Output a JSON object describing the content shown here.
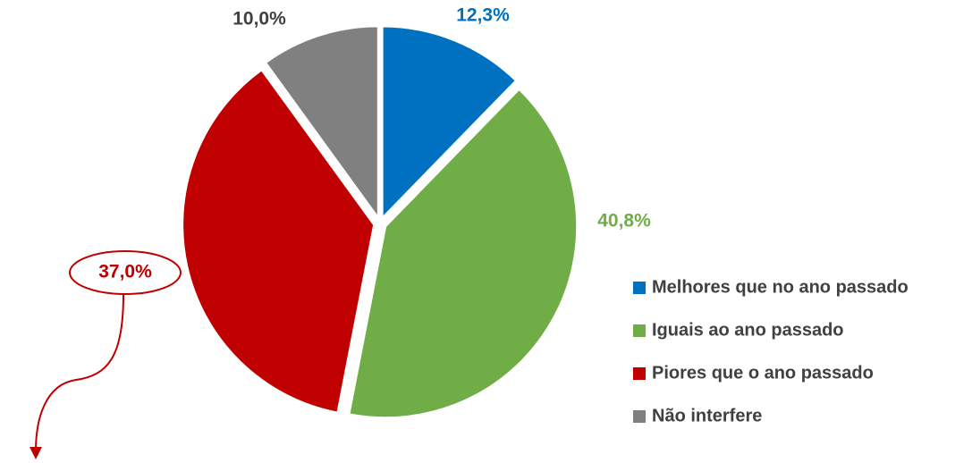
{
  "chart_data": {
    "type": "pie",
    "categories": [
      "Melhores que no ano passado",
      "Iguais ao ano passado",
      "Piores que o ano passado",
      "Não interfere"
    ],
    "values": [
      12.3,
      40.8,
      37.0,
      10.0
    ],
    "value_labels": [
      "12,3%",
      "40,8%",
      "37,0%",
      "10,0%"
    ],
    "colors": [
      "#0070c0",
      "#70ad47",
      "#c00000",
      "#808080"
    ],
    "legend": "right"
  }
}
